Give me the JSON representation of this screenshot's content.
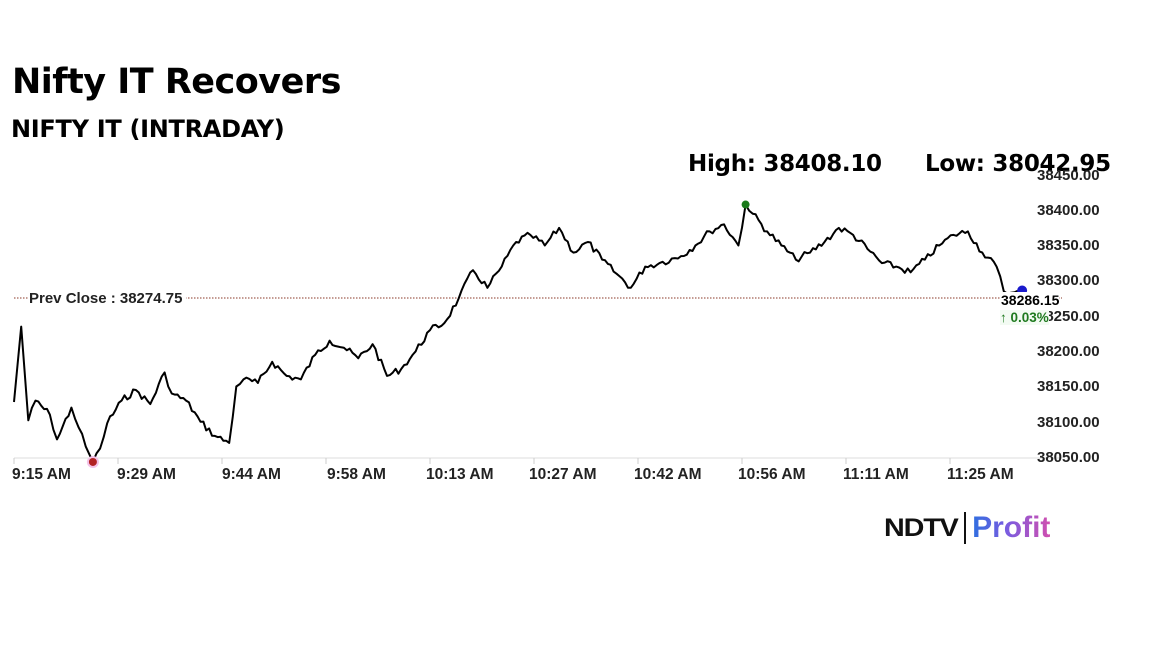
{
  "header": {
    "title": "Nifty IT Recovers",
    "subtitle": "NIFTY IT (INTRADAY)",
    "high_label": "High: 38408.10",
    "low_label": "Low: 38042.95"
  },
  "annotations": {
    "prev_close_label": "Prev Close : 38274.75",
    "last_price": "38286.15",
    "change": "↑ 0.03%"
  },
  "branding": {
    "ndtv": "NDTV",
    "profit": "Profit"
  },
  "colors": {
    "line": "#000000",
    "high_marker": "#1a7a1a",
    "low_marker": "#b22222",
    "last_marker": "#1a1acc",
    "prev_close_line": "#8b3a2a",
    "change_up": "#1f7a1f",
    "axis": "#dddddd"
  },
  "chart_data": {
    "type": "line",
    "title": "NIFTY IT (INTRADAY)",
    "subtitle": "Nifty IT Recovers",
    "xlabel": "",
    "ylabel": "",
    "x_tick_labels": [
      "9:15 AM",
      "9:29 AM",
      "9:44 AM",
      "9:58 AM",
      "10:13 AM",
      "10:27 AM",
      "10:42 AM",
      "10:56 AM",
      "11:11 AM",
      "11:25 AM"
    ],
    "y_tick_labels": [
      "38450.00",
      "38400.00",
      "38350.00",
      "38300.00",
      "38250.00",
      "38200.00",
      "38150.00",
      "38100.00",
      "38050.00"
    ],
    "ylim": [
      38050,
      38450
    ],
    "y_axis_position": "right",
    "grid": false,
    "legend": null,
    "high": 38408.1,
    "low": 38042.95,
    "prev_close": 38274.75,
    "last": 38286.15,
    "change_pct": 0.03,
    "series": [
      {
        "name": "NIFTY IT",
        "x": [
          "9:15",
          "9:16",
          "9:17",
          "9:18",
          "9:20",
          "9:21",
          "9:23",
          "9:24",
          "9:25",
          "9:26",
          "9:27",
          "9:28",
          "9:30",
          "9:32",
          "9:34",
          "9:36",
          "9:37",
          "9:39",
          "9:41",
          "9:43",
          "9:45",
          "9:46",
          "9:47",
          "9:49",
          "9:51",
          "9:53",
          "9:55",
          "9:57",
          "9:59",
          "10:01",
          "10:03",
          "10:05",
          "10:07",
          "10:09",
          "10:11",
          "10:13",
          "10:15",
          "10:17",
          "10:19",
          "10:21",
          "10:23",
          "10:25",
          "10:27",
          "10:29",
          "10:31",
          "10:33",
          "10:35",
          "10:37",
          "10:39",
          "10:41",
          "10:43",
          "10:45",
          "10:48",
          "10:50",
          "10:52",
          "10:54",
          "10:56",
          "10:57",
          "10:58",
          "11:00",
          "11:02",
          "11:04",
          "11:06",
          "11:08",
          "11:10",
          "11:12",
          "11:14",
          "11:16",
          "11:18",
          "11:20",
          "11:22",
          "11:24",
          "11:26",
          "11:28",
          "11:30",
          "11:32",
          "11:33",
          "11:34",
          "11:35"
        ],
        "values": [
          38128,
          38235,
          38102,
          38130,
          38110,
          38075,
          38120,
          38092,
          38065,
          38043,
          38062,
          38098,
          38130,
          38145,
          38125,
          38170,
          38140,
          38130,
          38100,
          38080,
          38070,
          38150,
          38160,
          38155,
          38185,
          38165,
          38160,
          38195,
          38215,
          38205,
          38190,
          38210,
          38165,
          38175,
          38200,
          38230,
          38240,
          38275,
          38315,
          38290,
          38320,
          38355,
          38365,
          38350,
          38375,
          38340,
          38355,
          38330,
          38310,
          38290,
          38320,
          38325,
          38335,
          38350,
          38370,
          38380,
          38350,
          38408,
          38395,
          38370,
          38350,
          38330,
          38340,
          38355,
          38375,
          38365,
          38345,
          38325,
          38320,
          38312,
          38330,
          38350,
          38365,
          38370,
          38340,
          38320,
          38285,
          38283,
          38286
        ]
      }
    ]
  }
}
